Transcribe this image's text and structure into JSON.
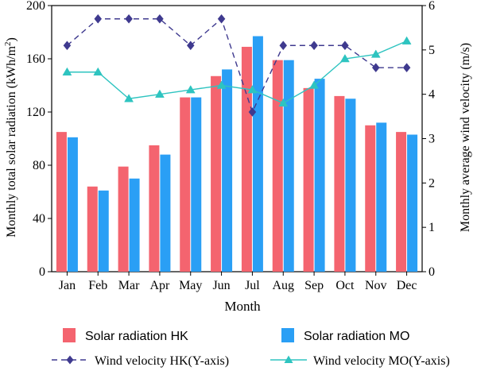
{
  "chart_data": {
    "type": "bar",
    "title": "",
    "xlabel": "Month",
    "ylabel_left_main": "Monthly total solar radiation (kWh/m",
    "ylabel_left_sup": "2",
    "ylabel_left_tail": ")",
    "ylabel_right": "Monthly average wind velocity (m/s)",
    "categories": [
      "Jan",
      "Feb",
      "Mar",
      "Apr",
      "May",
      "Jun",
      "Jul",
      "Aug",
      "Sep",
      "Oct",
      "Nov",
      "Dec"
    ],
    "ylim_left": [
      0,
      200
    ],
    "yticks_left": [
      "0",
      "40",
      "80",
      "120",
      "160",
      "200"
    ],
    "ylim_right": [
      0,
      6
    ],
    "yticks_right": [
      "0",
      "1",
      "2",
      "3",
      "4",
      "5",
      "6"
    ],
    "grid": false,
    "legend_position": "bottom",
    "series": [
      {
        "name": "Solar radiation HK",
        "kind": "bar",
        "axis": "left",
        "color": "#f4646f",
        "values": [
          105,
          64,
          79,
          95,
          131,
          147,
          169,
          159,
          138,
          132,
          110,
          105
        ]
      },
      {
        "name": "Solar radiation MO",
        "kind": "bar",
        "axis": "left",
        "color": "#2a9ff5",
        "values": [
          101,
          61,
          70,
          88,
          131,
          152,
          177,
          159,
          145,
          130,
          112,
          103
        ]
      },
      {
        "name": "Wind velocity HK(Y-axis)",
        "kind": "line",
        "axis": "right",
        "color": "#3f3a8f",
        "dashed": true,
        "marker": "diamond",
        "values": [
          5.1,
          5.7,
          5.7,
          5.7,
          5.1,
          5.7,
          3.6,
          5.1,
          5.1,
          5.1,
          4.6,
          4.6
        ]
      },
      {
        "name": "Wind velocity MO(Y-axis)",
        "kind": "line",
        "axis": "right",
        "color": "#2ec4c0",
        "dashed": false,
        "marker": "triangle",
        "values": [
          4.5,
          4.5,
          3.9,
          4.0,
          4.1,
          4.2,
          4.1,
          3.8,
          4.2,
          4.8,
          4.9,
          5.2
        ]
      }
    ]
  }
}
